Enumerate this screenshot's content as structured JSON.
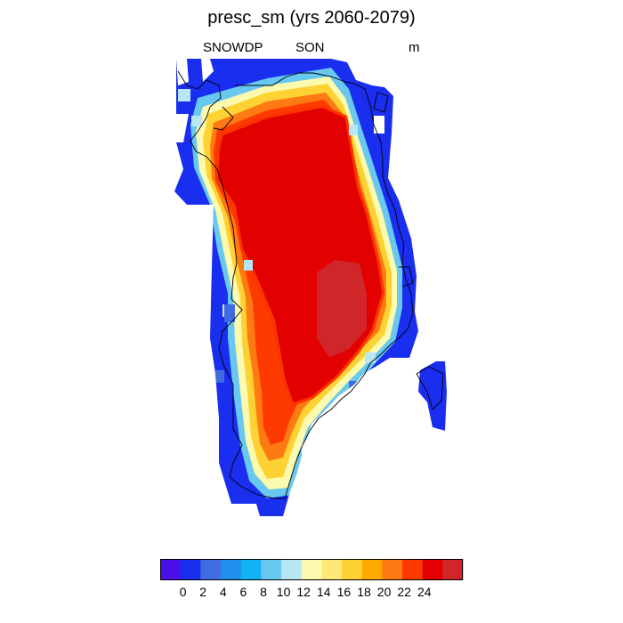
{
  "title": "presc_sm (yrs 2060-2079)",
  "subtitle_left": "SNOWDP",
  "subtitle_center": "SON",
  "subtitle_right": "m",
  "colorbar": {
    "colors": [
      "#4a10e8",
      "#1a2ef0",
      "#3f6ce0",
      "#1e8fea",
      "#10b4f4",
      "#68c8f0",
      "#b7e6f4",
      "#fcfaae",
      "#fee878",
      "#fed232",
      "#fea800",
      "#fe7a12",
      "#fe3a00",
      "#e30000",
      "#d0262a"
    ],
    "labels": [
      "0",
      "2",
      "4",
      "6",
      "8",
      "10",
      "12",
      "14",
      "16",
      "18",
      "20",
      "22",
      "24"
    ]
  }
}
